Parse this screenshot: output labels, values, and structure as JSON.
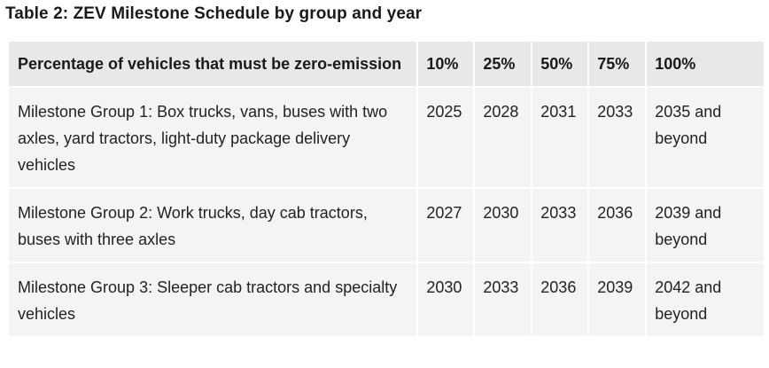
{
  "caption": "Table 2: ZEV Milestone Schedule by group and year",
  "table": {
    "headers": {
      "group": "Percentage of vehicles that must be zero-emission",
      "pct10": "10%",
      "pct25": "25%",
      "pct50": "50%",
      "pct75": "75%",
      "pct100": "100%"
    },
    "rows": [
      {
        "group": "Milestone Group 1: Box trucks, vans, buses with two axles, yard tractors, light-duty package delivery vehicles",
        "pct10": "2025",
        "pct25": "2028",
        "pct50": "2031",
        "pct75": "2033",
        "pct100": "2035 and beyond"
      },
      {
        "group": "Milestone Group 2: Work trucks, day cab tractors, buses with three axles",
        "pct10": "2027",
        "pct25": "2030",
        "pct50": "2033",
        "pct75": "2036",
        "pct100": "2039 and beyond"
      },
      {
        "group": "Milestone Group 3: Sleeper cab tractors and specialty vehicles",
        "pct10": "2030",
        "pct25": "2033",
        "pct50": "2036",
        "pct75": "2039",
        "pct100": "2042 and beyond"
      }
    ]
  }
}
